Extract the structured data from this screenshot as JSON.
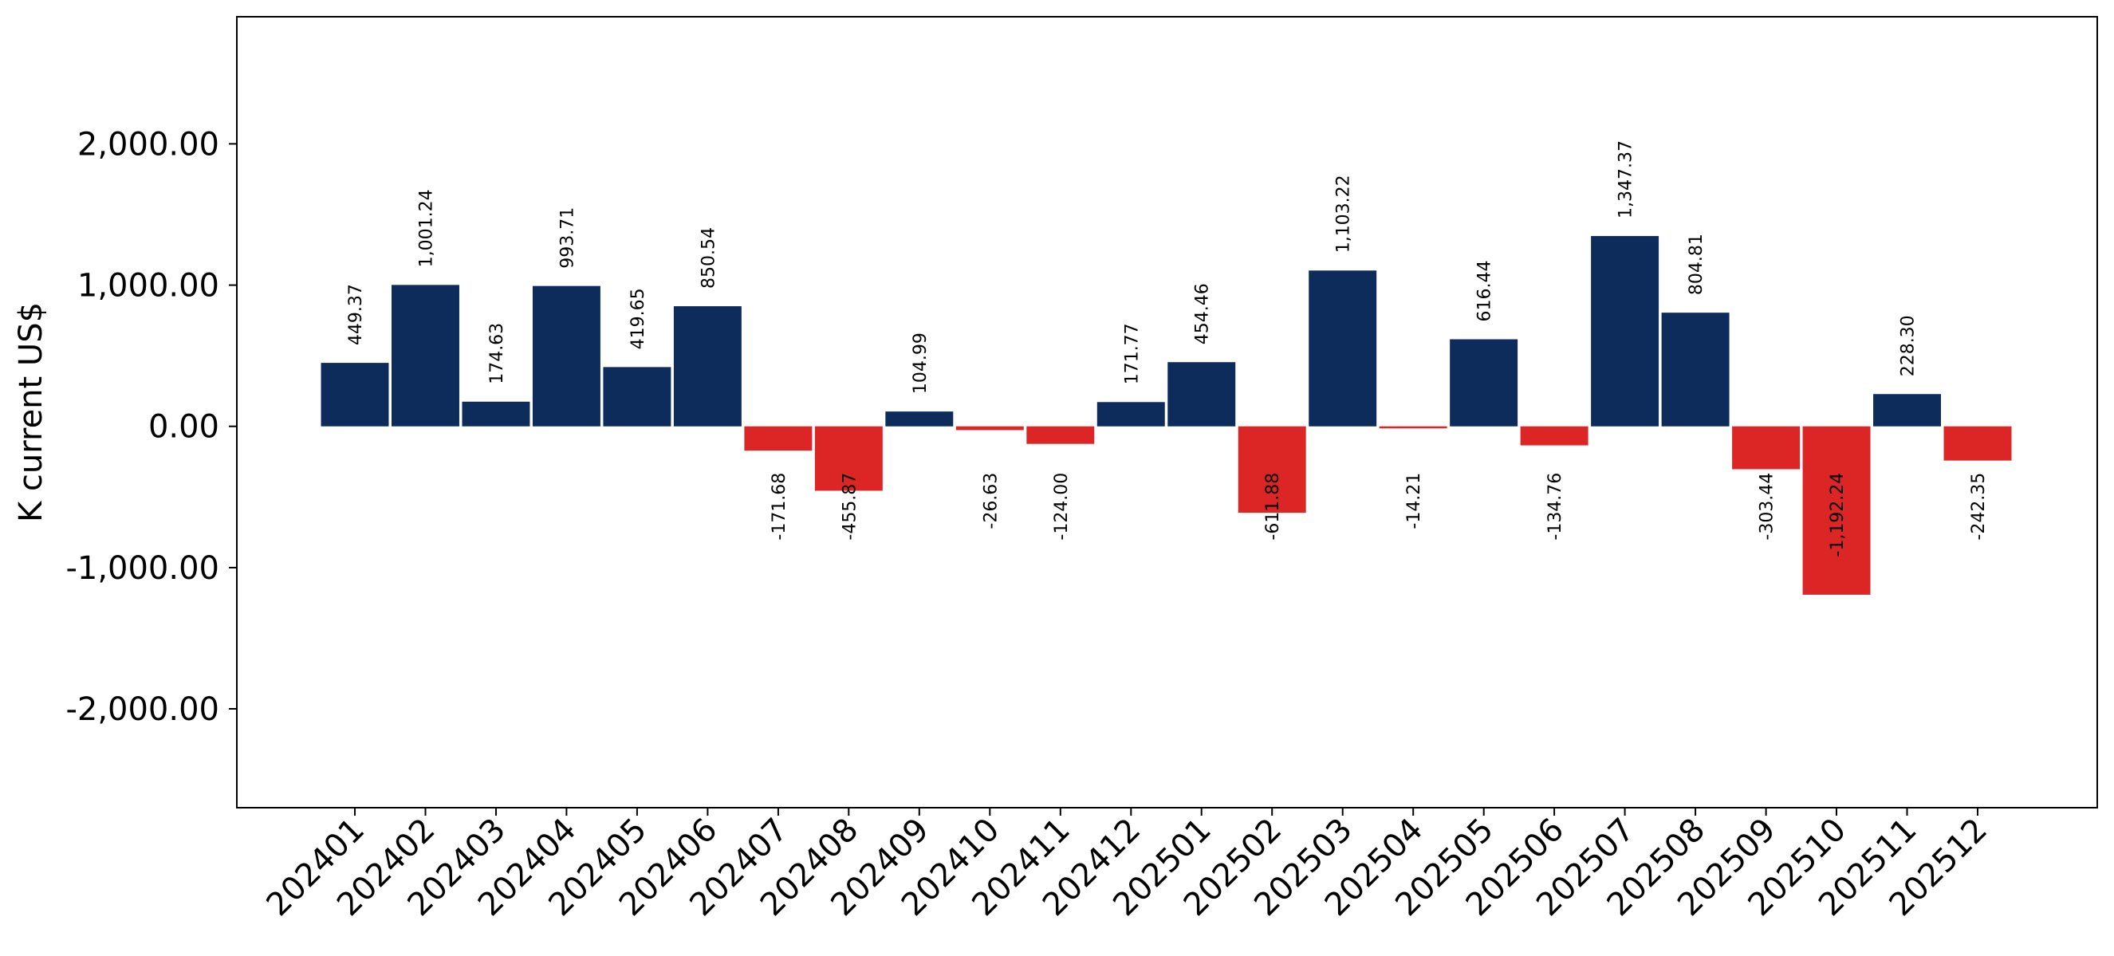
{
  "chart_data": {
    "type": "bar",
    "ylabel": "K current US$",
    "ylim": [
      -2700,
      2900
    ],
    "yticks": [
      -2000,
      -1000,
      0,
      1000,
      2000
    ],
    "ytick_labels": [
      "-2,000.00",
      "-1,000.00",
      "0.00",
      "1,000.00",
      "2,000.00"
    ],
    "categories": [
      "202401",
      "202402",
      "202403",
      "202404",
      "202405",
      "202406",
      "202407",
      "202408",
      "202409",
      "202410",
      "202411",
      "202412",
      "202501",
      "202502",
      "202503",
      "202504",
      "202505",
      "202506",
      "202507",
      "202508",
      "202509",
      "202510",
      "202511",
      "202512"
    ],
    "values": [
      449.37,
      1001.24,
      174.63,
      993.71,
      419.65,
      850.54,
      -171.68,
      -455.87,
      104.99,
      -26.63,
      -124.0,
      171.77,
      454.46,
      -611.88,
      1103.22,
      -14.21,
      616.44,
      -134.76,
      1347.37,
      804.81,
      -303.44,
      -1192.24,
      228.3,
      -242.35
    ],
    "value_labels": [
      "449.37",
      "1,001.24",
      "174.63",
      "993.71",
      "419.65",
      "850.54",
      "-171.68",
      "-455.87",
      "104.99",
      "-26.63",
      "-124.00",
      "171.77",
      "454.46",
      "-611.88",
      "1,103.22",
      "-14.21",
      "616.44",
      "-134.76",
      "1,347.37",
      "804.81",
      "-303.44",
      "-1,192.24",
      "228.30",
      "-242.35"
    ],
    "colors": {
      "positive": "#0d2b5b",
      "negative": "#dc2626"
    },
    "grid": false,
    "legend": "none"
  }
}
